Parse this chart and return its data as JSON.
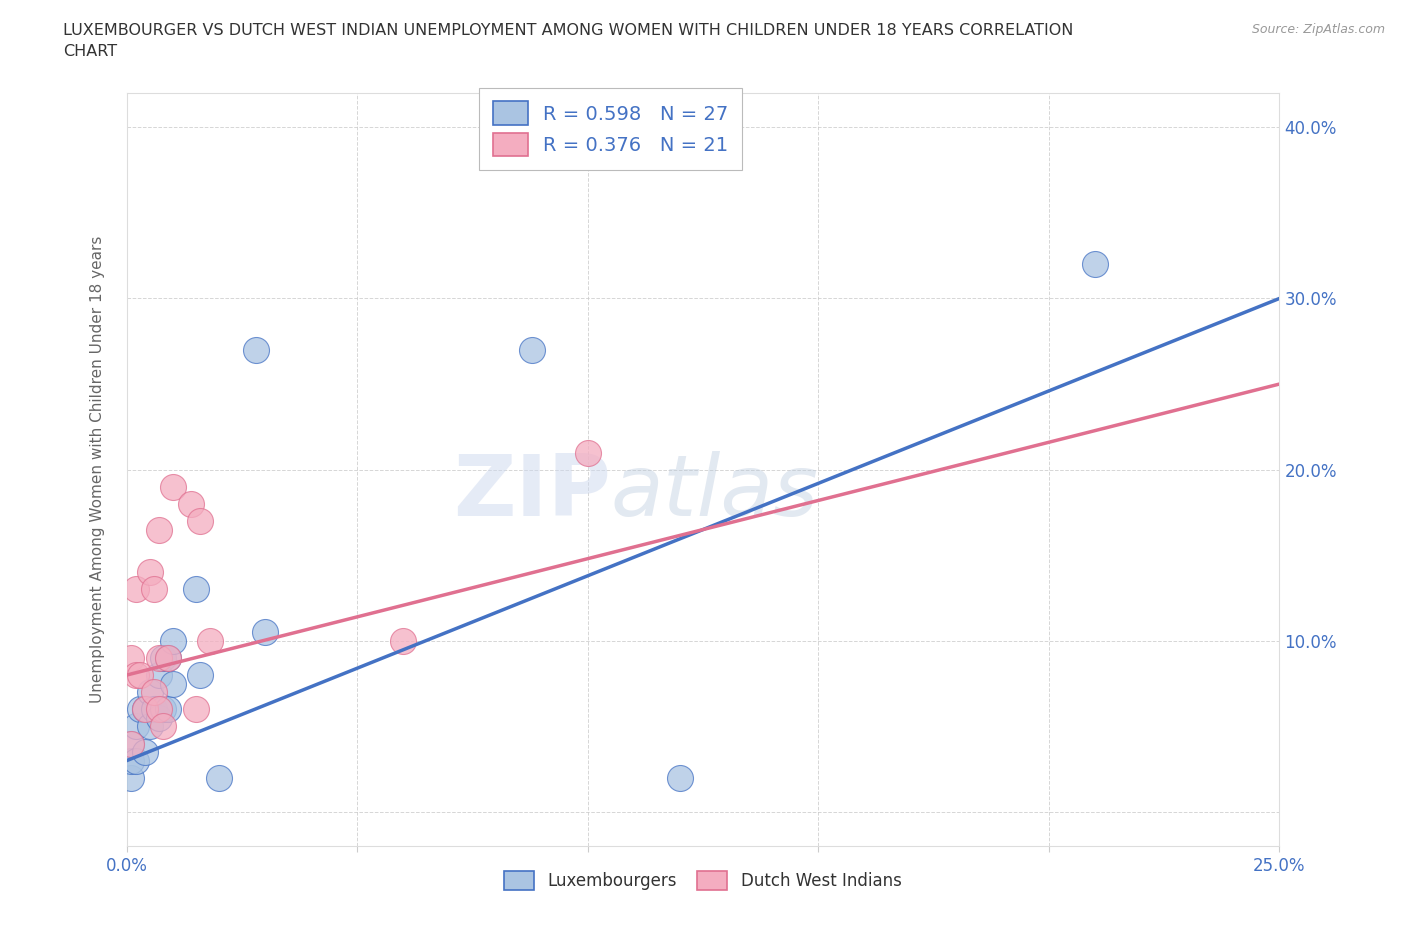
{
  "title_line1": "LUXEMBOURGER VS DUTCH WEST INDIAN UNEMPLOYMENT AMONG WOMEN WITH CHILDREN UNDER 18 YEARS CORRELATION",
  "title_line2": "CHART",
  "source": "Source: ZipAtlas.com",
  "ylabel": "Unemployment Among Women with Children Under 18 years",
  "xlim": [
    0.0,
    0.25
  ],
  "ylim": [
    -0.02,
    0.42
  ],
  "xticks": [
    0.0,
    0.05,
    0.1,
    0.15,
    0.2,
    0.25
  ],
  "yticks": [
    0.0,
    0.1,
    0.2,
    0.3,
    0.4
  ],
  "watermark_zip": "ZIP",
  "watermark_atlas": "atlas",
  "lux_color": "#aac4e2",
  "dwi_color": "#f4adc0",
  "lux_edge_color": "#4472c4",
  "dwi_edge_color": "#e07090",
  "lux_line_color": "#4472c4",
  "dwi_line_color": "#e07090",
  "lux_R": 0.598,
  "lux_N": 27,
  "dwi_R": 0.376,
  "dwi_N": 21,
  "luxembourger_x": [
    0.001,
    0.001,
    0.001,
    0.002,
    0.002,
    0.003,
    0.004,
    0.004,
    0.005,
    0.005,
    0.006,
    0.007,
    0.007,
    0.008,
    0.008,
    0.009,
    0.009,
    0.01,
    0.01,
    0.015,
    0.016,
    0.02,
    0.028,
    0.03,
    0.088,
    0.12,
    0.21
  ],
  "luxembourger_y": [
    0.02,
    0.03,
    0.04,
    0.03,
    0.05,
    0.06,
    0.035,
    0.06,
    0.05,
    0.07,
    0.06,
    0.055,
    0.08,
    0.06,
    0.09,
    0.06,
    0.09,
    0.1,
    0.075,
    0.13,
    0.08,
    0.02,
    0.27,
    0.105,
    0.27,
    0.02,
    0.32
  ],
  "dwi_x": [
    0.001,
    0.001,
    0.002,
    0.002,
    0.003,
    0.004,
    0.005,
    0.006,
    0.006,
    0.007,
    0.007,
    0.007,
    0.008,
    0.009,
    0.01,
    0.014,
    0.015,
    0.016,
    0.018,
    0.06,
    0.1
  ],
  "dwi_y": [
    0.04,
    0.09,
    0.08,
    0.13,
    0.08,
    0.06,
    0.14,
    0.07,
    0.13,
    0.06,
    0.09,
    0.165,
    0.05,
    0.09,
    0.19,
    0.18,
    0.06,
    0.17,
    0.1,
    0.1,
    0.21
  ],
  "background_color": "#ffffff",
  "grid_color": "#cccccc",
  "title_color": "#333333",
  "axis_label_color": "#666666",
  "tick_color": "#4472c4",
  "legend_color": "#4472c4"
}
